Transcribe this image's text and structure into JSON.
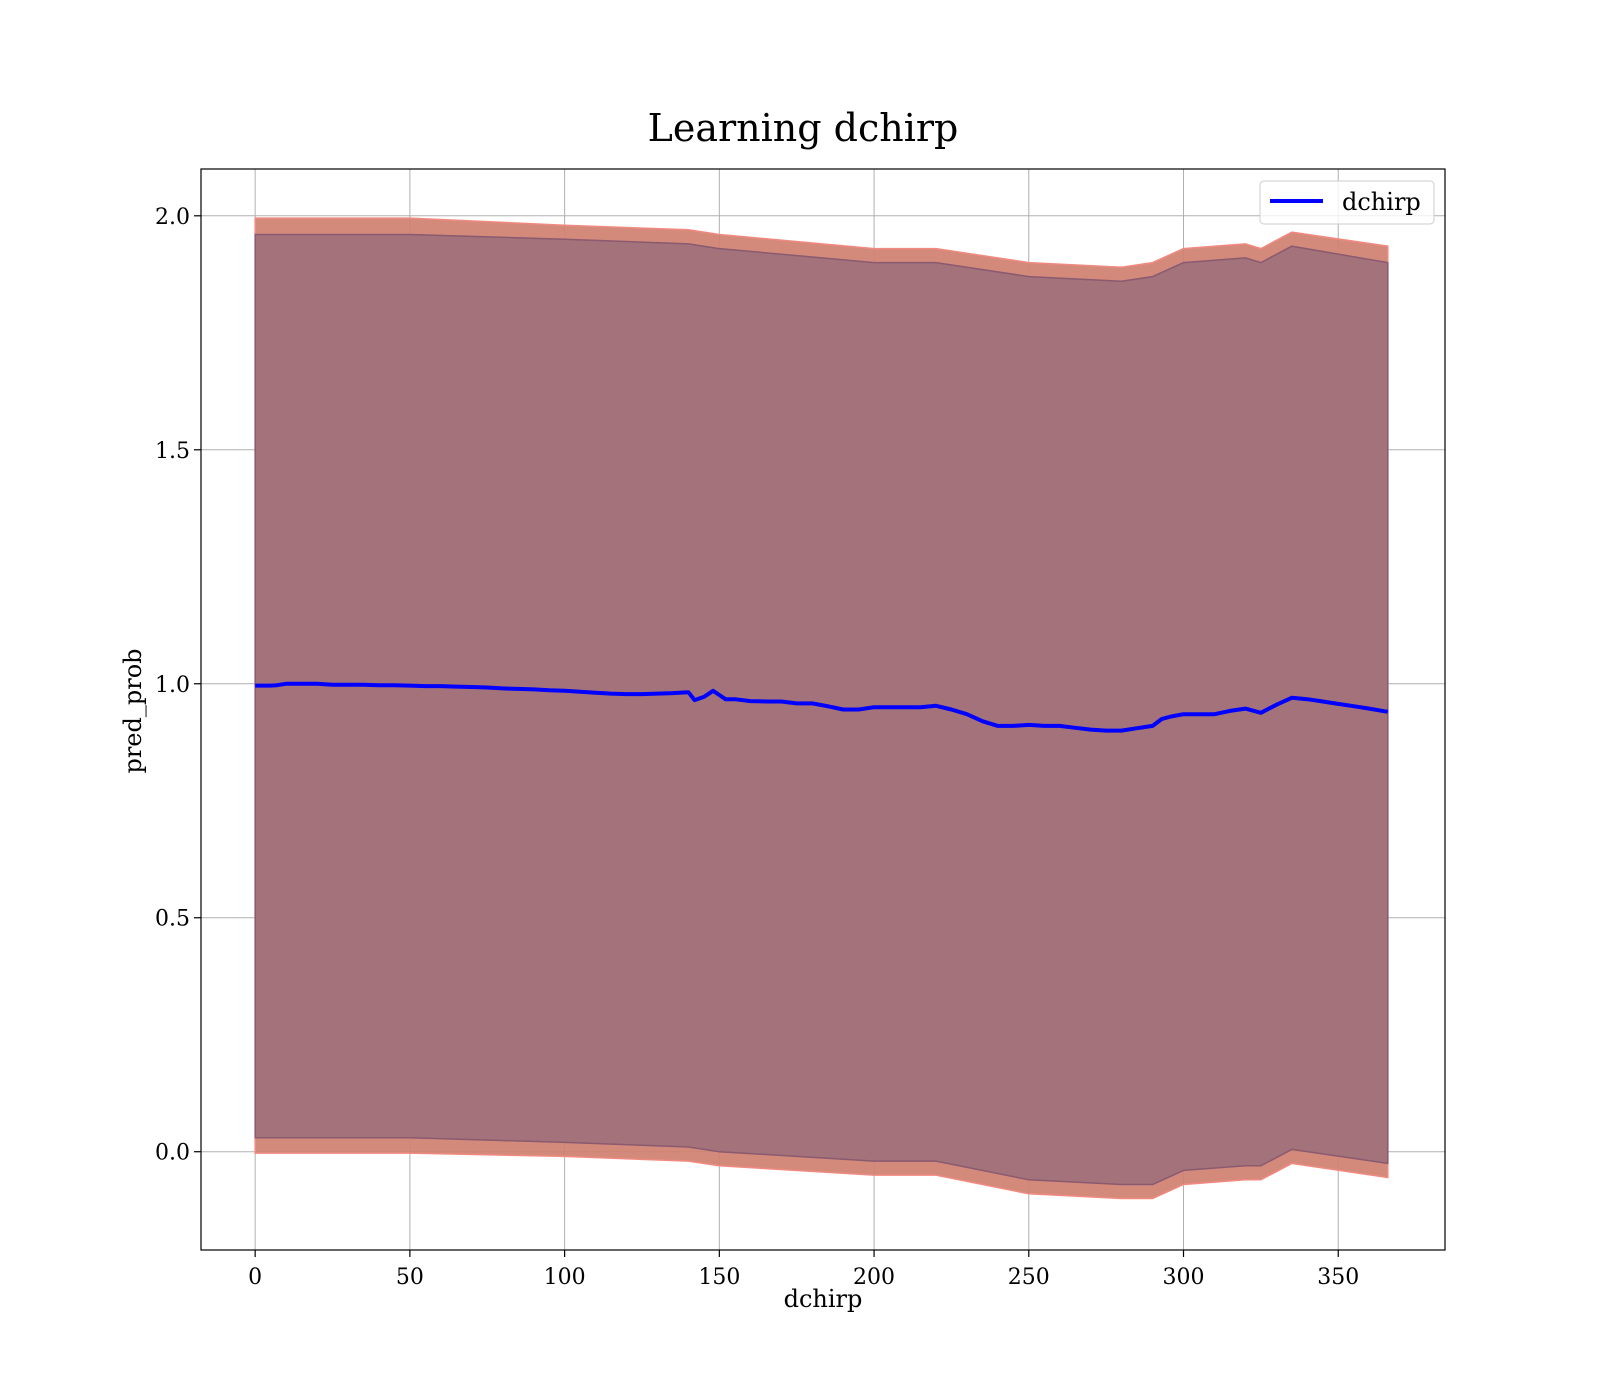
{
  "chart_data": {
    "type": "line",
    "title": "Learning dchirp",
    "xlabel": "dchirp",
    "ylabel": "pred_prob",
    "xlim": [
      -17.5,
      384.5
    ],
    "ylim": [
      -0.21,
      2.1
    ],
    "xticks": [
      0,
      50,
      100,
      150,
      200,
      250,
      300,
      350
    ],
    "xtick_labels": [
      "0",
      "50",
      "100",
      "150",
      "200",
      "250",
      "300",
      "350"
    ],
    "yticks": [
      0.0,
      0.5,
      1.0,
      1.5,
      2.0
    ],
    "ytick_labels": [
      "0.0",
      "0.5",
      "1.0",
      "1.5",
      "2.0"
    ],
    "grid": true,
    "legend_position": "upper right",
    "series": [
      {
        "name": "dchirp",
        "color": "#0000ff",
        "x": [
          0,
          5,
          7,
          10,
          13,
          16,
          20,
          25,
          30,
          35,
          40,
          45,
          50,
          55,
          60,
          65,
          70,
          75,
          80,
          85,
          90,
          95,
          100,
          105,
          110,
          115,
          120,
          125,
          130,
          135,
          140,
          142,
          145,
          148,
          150,
          152,
          155,
          160,
          165,
          170,
          175,
          180,
          185,
          190,
          195,
          200,
          205,
          210,
          215,
          220,
          225,
          230,
          235,
          240,
          245,
          250,
          255,
          260,
          265,
          270,
          275,
          280,
          285,
          290,
          293,
          296,
          300,
          305,
          310,
          315,
          320,
          325,
          330,
          335,
          340,
          345,
          350,
          355,
          360,
          366
        ],
        "y": [
          0.996,
          0.996,
          0.997,
          1.0,
          1.0,
          1.0,
          1.0,
          0.998,
          0.998,
          0.998,
          0.997,
          0.997,
          0.996,
          0.995,
          0.995,
          0.994,
          0.993,
          0.992,
          0.99,
          0.989,
          0.988,
          0.986,
          0.985,
          0.983,
          0.981,
          0.979,
          0.978,
          0.978,
          0.979,
          0.98,
          0.982,
          0.965,
          0.972,
          0.985,
          0.976,
          0.967,
          0.967,
          0.963,
          0.962,
          0.962,
          0.958,
          0.958,
          0.952,
          0.945,
          0.945,
          0.95,
          0.95,
          0.95,
          0.95,
          0.953,
          0.945,
          0.935,
          0.92,
          0.91,
          0.91,
          0.912,
          0.91,
          0.91,
          0.906,
          0.902,
          0.9,
          0.9,
          0.905,
          0.91,
          0.925,
          0.93,
          0.935,
          0.935,
          0.935,
          0.942,
          0.947,
          0.938,
          0.955,
          0.97,
          0.967,
          0.962,
          0.957,
          0.952,
          0.947,
          0.94
        ]
      }
    ],
    "bands": [
      {
        "color": "#d08070",
        "x": [
          0,
          50,
          100,
          140,
          150,
          200,
          220,
          250,
          280,
          290,
          300,
          320,
          325,
          335,
          366
        ],
        "upper": [
          1.995,
          1.995,
          1.98,
          1.97,
          1.96,
          1.93,
          1.93,
          1.9,
          1.89,
          1.9,
          1.93,
          1.94,
          1.93,
          1.965,
          1.935
        ],
        "lower": [
          -0.003,
          -0.003,
          -0.01,
          -0.02,
          -0.03,
          -0.05,
          -0.05,
          -0.09,
          -0.1,
          -0.1,
          -0.07,
          -0.06,
          -0.06,
          -0.025,
          -0.055
        ]
      },
      {
        "color": "#a0707a",
        "x": [
          0,
          50,
          100,
          140,
          150,
          200,
          220,
          250,
          280,
          290,
          300,
          320,
          325,
          335,
          366
        ],
        "upper": [
          1.96,
          1.96,
          1.95,
          1.94,
          1.93,
          1.9,
          1.9,
          1.87,
          1.86,
          1.87,
          1.9,
          1.91,
          1.9,
          1.935,
          1.9
        ],
        "lower": [
          0.03,
          0.03,
          0.02,
          0.01,
          0.0,
          -0.02,
          -0.02,
          -0.06,
          -0.07,
          -0.07,
          -0.04,
          -0.03,
          -0.03,
          0.005,
          -0.025
        ]
      }
    ]
  }
}
